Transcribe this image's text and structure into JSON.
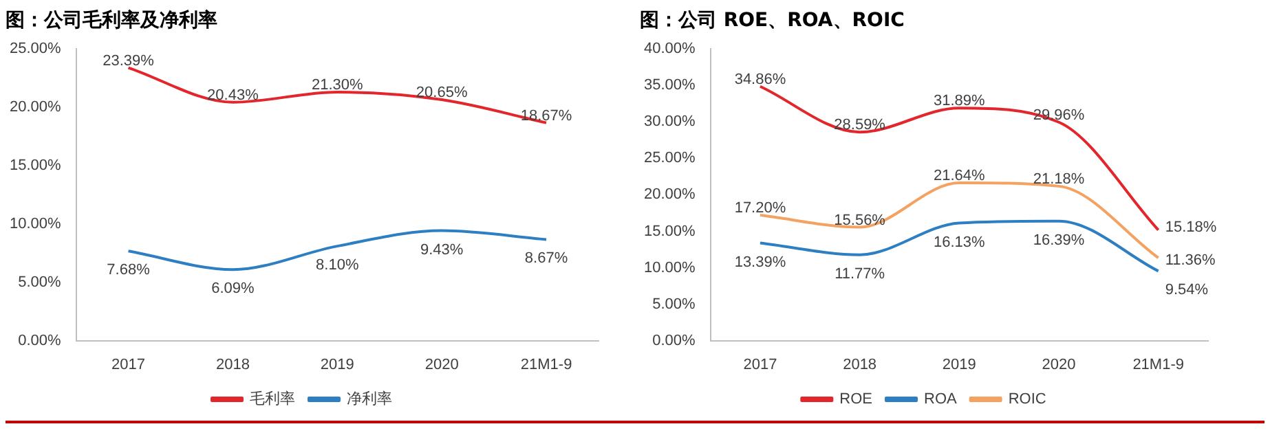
{
  "chart_data": [
    {
      "type": "line",
      "title": "图：公司毛利率及净利率",
      "categories": [
        "2017",
        "2018",
        "2019",
        "2020",
        "21M1-9"
      ],
      "series": [
        {
          "name": "毛利率",
          "color": "#e3262b",
          "values": [
            23.39,
            20.43,
            21.3,
            20.65,
            18.67
          ],
          "value_labels": [
            "23.39%",
            "20.43%",
            "21.30%",
            "20.65%",
            "18.67%"
          ]
        },
        {
          "name": "净利率",
          "color": "#2e7fc2",
          "values": [
            7.68,
            6.09,
            8.1,
            9.43,
            8.67
          ],
          "value_labels": [
            "7.68%",
            "6.09%",
            "8.10%",
            "9.43%",
            "8.67%"
          ]
        }
      ],
      "ylim": [
        0,
        25
      ],
      "yticks": [
        {
          "value": 0,
          "label": "0.00%"
        },
        {
          "value": 5,
          "label": "5.00%"
        },
        {
          "value": 10,
          "label": "10.00%"
        },
        {
          "value": 15,
          "label": "15.00%"
        },
        {
          "value": 20,
          "label": "20.00%"
        },
        {
          "value": 25,
          "label": "25.00%"
        }
      ],
      "legend": "bottom",
      "grid": false,
      "marker": "none",
      "line_style": "solid"
    },
    {
      "type": "line",
      "title": "图：公司 ROE、ROA、ROIC",
      "categories": [
        "2017",
        "2018",
        "2019",
        "2020",
        "21M1-9"
      ],
      "series": [
        {
          "name": "ROE",
          "color": "#e3262b",
          "values": [
            34.86,
            28.59,
            31.89,
            29.96,
            15.18
          ],
          "value_labels": [
            "34.86%",
            "28.59%",
            "31.89%",
            "29.96%",
            "15.18%"
          ]
        },
        {
          "name": "ROA",
          "color": "#2e7fc2",
          "values": [
            13.39,
            11.77,
            16.13,
            16.39,
            9.54
          ],
          "value_labels": [
            "13.39%",
            "11.77%",
            "16.13%",
            "16.39%",
            "9.54%"
          ]
        },
        {
          "name": "ROIC",
          "color": "#f4a261",
          "values": [
            17.2,
            15.56,
            21.64,
            21.18,
            11.36
          ],
          "value_labels": [
            "17.20%",
            "15.56%",
            "21.64%",
            "21.18%",
            "11.36%"
          ]
        }
      ],
      "ylim": [
        0,
        40
      ],
      "yticks": [
        {
          "value": 0,
          "label": "0.00%"
        },
        {
          "value": 5,
          "label": "5.00%"
        },
        {
          "value": 10,
          "label": "10.00%"
        },
        {
          "value": 15,
          "label": "15.00%"
        },
        {
          "value": 20,
          "label": "20.00%"
        },
        {
          "value": 25,
          "label": "25.00%"
        },
        {
          "value": 30,
          "label": "30.00%"
        },
        {
          "value": 35,
          "label": "35.00%"
        },
        {
          "value": 40,
          "label": "40.00%"
        }
      ],
      "legend": "bottom",
      "grid": false,
      "marker": "none",
      "line_style": "solid"
    }
  ]
}
